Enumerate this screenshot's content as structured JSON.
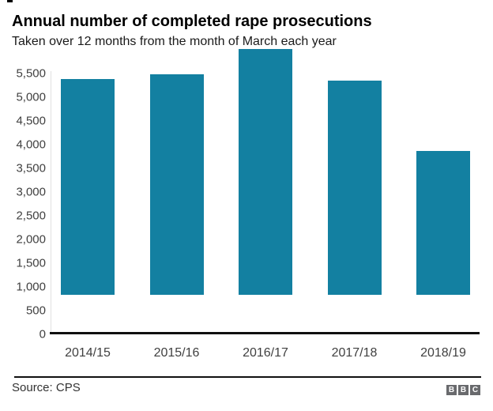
{
  "header": {
    "title": "Annual number of completed rape prosecutions",
    "subtitle": "Taken over 12 months from the month of March each year"
  },
  "footer": {
    "source": "Source: CPS",
    "logo_letters": [
      "B",
      "B",
      "C"
    ]
  },
  "colors": {
    "bar": "#1380A1",
    "baseline": "#0f0f0f",
    "y_axis_line": "#e0e0e0",
    "tick_label": "#404040",
    "divider": "#111111",
    "source_text": "#333333",
    "logo_bg": "#696a6d",
    "logo_text": "#ffffff"
  },
  "chart_data": {
    "type": "bar",
    "title": "Annual number of completed rape prosecutions",
    "subtitle": "Taken over 12 months from the month of March each year",
    "categories": [
      "2014/15",
      "2015/16",
      "2016/17",
      "2017/18",
      "2018/19"
    ],
    "values": [
      4550,
      4643,
      5190,
      4517,
      3034
    ],
    "xlabel": "",
    "ylabel": "",
    "ylim": [
      0,
      5500
    ],
    "ytick_step": 500,
    "ytick_values": [
      0,
      500,
      1000,
      1500,
      2000,
      2500,
      3000,
      3500,
      4000,
      4500,
      5000,
      5500
    ],
    "ytick_labels": [
      "0",
      "500",
      "1,000",
      "1,500",
      "2,000",
      "2,500",
      "3,000",
      "3,500",
      "4,000",
      "4,500",
      "5,000",
      "5,500"
    ],
    "grid": false,
    "legend": false,
    "bar_color": "#1380A1",
    "source": "Source: CPS"
  }
}
